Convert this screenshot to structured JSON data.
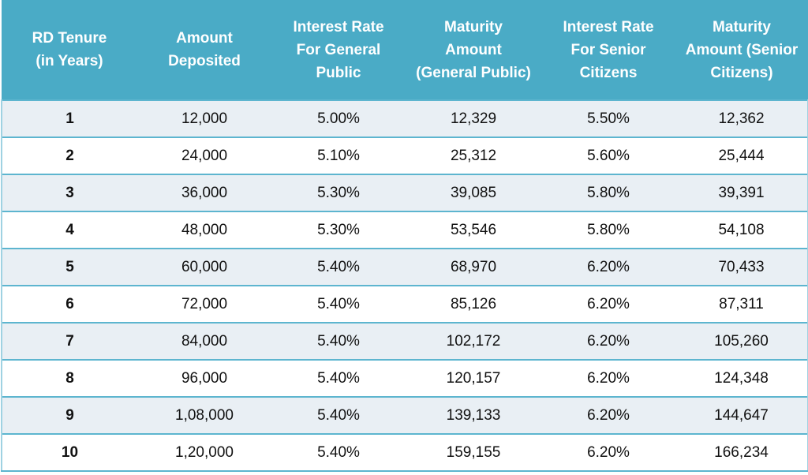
{
  "table": {
    "headers": [
      [
        "RD Tenure",
        "(in Years)"
      ],
      [
        "Amount",
        "Deposited"
      ],
      [
        "Interest Rate",
        "For General",
        "Public"
      ],
      [
        "Maturity",
        "Amount",
        "(General Public)"
      ],
      [
        "Interest Rate",
        "For Senior",
        "Citizens"
      ],
      [
        "Maturity",
        "Amount (Senior",
        "Citizens)"
      ]
    ],
    "rows": [
      [
        "1",
        "12,000",
        "5.00%",
        "12,329",
        "5.50%",
        "12,362"
      ],
      [
        "2",
        "24,000",
        "5.10%",
        "25,312",
        "5.60%",
        "25,444"
      ],
      [
        "3",
        "36,000",
        "5.30%",
        "39,085",
        "5.80%",
        "39,391"
      ],
      [
        "4",
        "48,000",
        "5.30%",
        "53,546",
        "5.80%",
        "54,108"
      ],
      [
        "5",
        "60,000",
        "5.40%",
        "68,970",
        "6.20%",
        "70,433"
      ],
      [
        "6",
        "72,000",
        "5.40%",
        "85,126",
        "6.20%",
        "87,311"
      ],
      [
        "7",
        "84,000",
        "5.40%",
        "102,172",
        "6.20%",
        "105,260"
      ],
      [
        "8",
        "96,000",
        "5.40%",
        "120,157",
        "6.20%",
        "124,348"
      ],
      [
        "9",
        "1,08,000",
        "5.40%",
        "139,133",
        "6.20%",
        "144,647"
      ],
      [
        "10",
        "1,20,000",
        "5.40%",
        "159,155",
        "6.20%",
        "166,234"
      ]
    ]
  }
}
